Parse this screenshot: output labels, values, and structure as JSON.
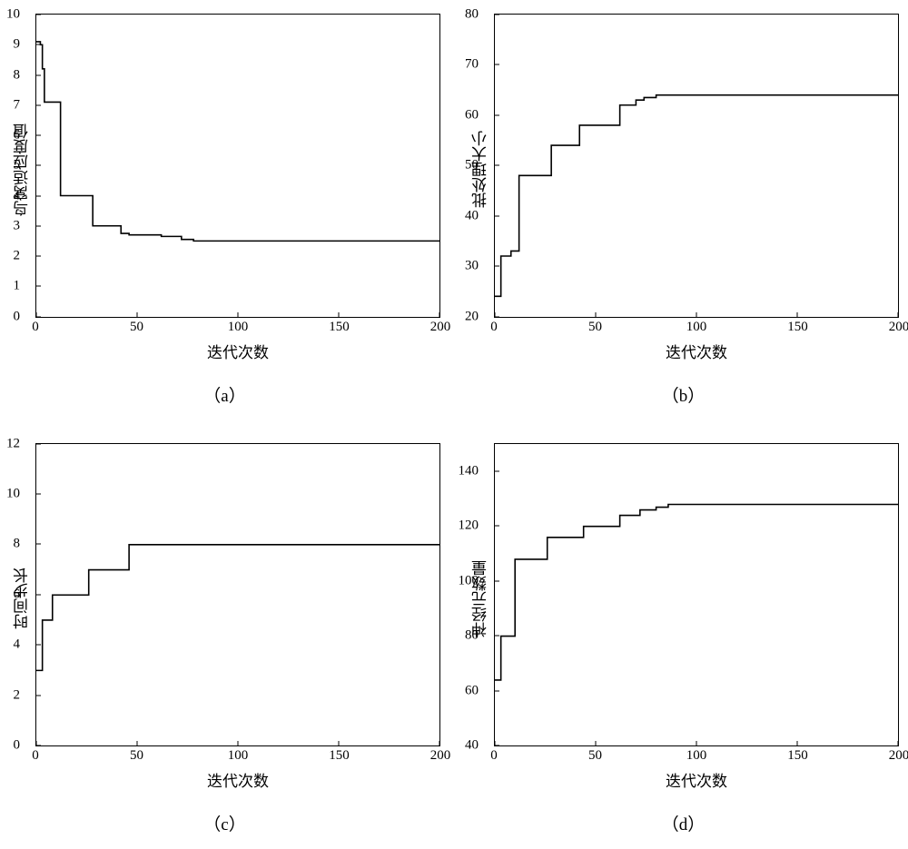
{
  "layout": {
    "rows": 2,
    "cols": 2,
    "background_color": "#ffffff",
    "line_color": "#000000",
    "axis_color": "#000000",
    "line_width": 1.6,
    "font_family": "SimSun",
    "tick_fontsize": 15,
    "label_fontsize": 17,
    "caption_fontsize": 19
  },
  "charts": {
    "a": {
      "type": "line-step",
      "caption": "（a）",
      "xlabel": "迭代次数",
      "ylabel": "鸟窝适应度值",
      "xlim": [
        0,
        200
      ],
      "ylim": [
        0,
        10
      ],
      "xticks": [
        0,
        50,
        100,
        150,
        200
      ],
      "yticks": [
        0,
        1,
        2,
        3,
        4,
        5,
        6,
        7,
        8,
        9,
        10
      ],
      "series_color": "#000000",
      "data": [
        [
          0,
          9.1
        ],
        [
          2,
          9.1
        ],
        [
          2,
          9.0
        ],
        [
          3,
          9.0
        ],
        [
          3,
          8.2
        ],
        [
          4,
          8.2
        ],
        [
          4,
          7.1
        ],
        [
          12,
          7.1
        ],
        [
          12,
          4.0
        ],
        [
          28,
          4.0
        ],
        [
          28,
          3.0
        ],
        [
          42,
          3.0
        ],
        [
          42,
          2.75
        ],
        [
          46,
          2.75
        ],
        [
          46,
          2.7
        ],
        [
          62,
          2.7
        ],
        [
          62,
          2.65
        ],
        [
          72,
          2.65
        ],
        [
          72,
          2.55
        ],
        [
          78,
          2.55
        ],
        [
          78,
          2.5
        ],
        [
          200,
          2.5
        ]
      ]
    },
    "b": {
      "type": "line-step",
      "caption": "（b）",
      "xlabel": "迭代次数",
      "ylabel": "批处理大小",
      "xlim": [
        0,
        200
      ],
      "ylim": [
        20,
        80
      ],
      "xticks": [
        0,
        50,
        100,
        150,
        200
      ],
      "yticks": [
        20,
        30,
        40,
        50,
        60,
        70,
        80
      ],
      "series_color": "#000000",
      "data": [
        [
          0,
          24
        ],
        [
          3,
          24
        ],
        [
          3,
          32
        ],
        [
          8,
          32
        ],
        [
          8,
          33
        ],
        [
          12,
          33
        ],
        [
          12,
          48
        ],
        [
          28,
          48
        ],
        [
          28,
          54
        ],
        [
          42,
          54
        ],
        [
          42,
          58
        ],
        [
          62,
          58
        ],
        [
          62,
          62
        ],
        [
          70,
          62
        ],
        [
          70,
          63
        ],
        [
          74,
          63
        ],
        [
          74,
          63.5
        ],
        [
          80,
          63.5
        ],
        [
          80,
          64
        ],
        [
          200,
          64
        ]
      ]
    },
    "c": {
      "type": "line-step",
      "caption": "（c）",
      "xlabel": "迭代次数",
      "ylabel": "时间步长",
      "xlim": [
        0,
        200
      ],
      "ylim": [
        0,
        12
      ],
      "xticks": [
        0,
        50,
        100,
        150,
        200
      ],
      "yticks": [
        0,
        2,
        4,
        6,
        8,
        10,
        12
      ],
      "series_color": "#000000",
      "data": [
        [
          0,
          3
        ],
        [
          3,
          3
        ],
        [
          3,
          5
        ],
        [
          8,
          5
        ],
        [
          8,
          6
        ],
        [
          26,
          6
        ],
        [
          26,
          7
        ],
        [
          46,
          7
        ],
        [
          46,
          8
        ],
        [
          200,
          8
        ]
      ]
    },
    "d": {
      "type": "line-step",
      "caption": "（d）",
      "xlabel": "迭代次数",
      "ylabel": "神经元数量",
      "xlim": [
        0,
        200
      ],
      "ylim": [
        40,
        150
      ],
      "xticks": [
        0,
        50,
        100,
        150,
        200
      ],
      "yticks": [
        40,
        60,
        80,
        100,
        120,
        140
      ],
      "series_color": "#000000",
      "data": [
        [
          0,
          64
        ],
        [
          3,
          64
        ],
        [
          3,
          80
        ],
        [
          10,
          80
        ],
        [
          10,
          108
        ],
        [
          26,
          108
        ],
        [
          26,
          116
        ],
        [
          44,
          116
        ],
        [
          44,
          120
        ],
        [
          62,
          120
        ],
        [
          62,
          124
        ],
        [
          72,
          124
        ],
        [
          72,
          126
        ],
        [
          80,
          126
        ],
        [
          80,
          127
        ],
        [
          86,
          127
        ],
        [
          86,
          128
        ],
        [
          200,
          128
        ]
      ]
    }
  }
}
